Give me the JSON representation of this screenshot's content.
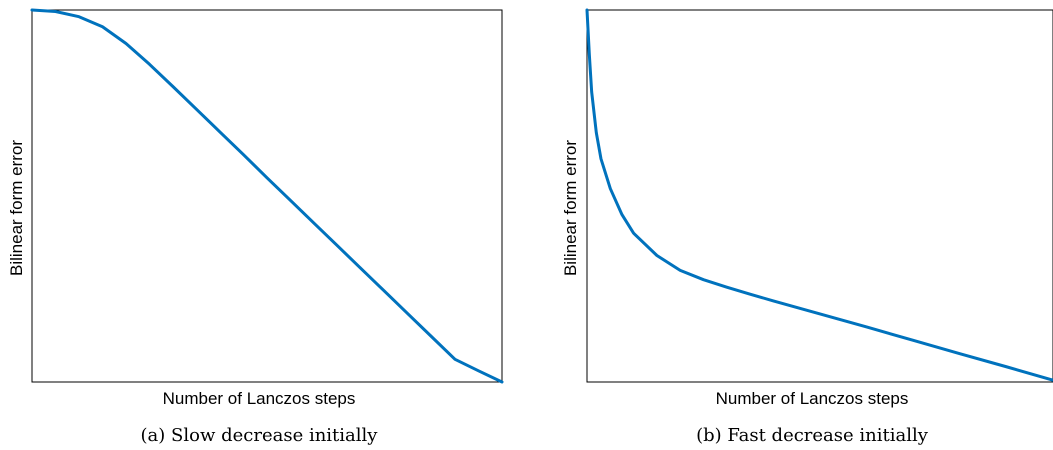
{
  "chart_data": [
    {
      "type": "line",
      "caption": "(a) Slow decrease initially",
      "xlabel": "Number of Lanczos steps",
      "ylabel": "Bilinear form error",
      "color": "#0072BD",
      "x": [
        0,
        0.05,
        0.1,
        0.15,
        0.2,
        0.25,
        0.3,
        0.35,
        0.4,
        0.45,
        0.5,
        0.55,
        0.6,
        0.65,
        0.7,
        0.75,
        0.8,
        0.85,
        0.9,
        0.95,
        1.0
      ],
      "y": [
        1.0,
        0.996,
        0.982,
        0.955,
        0.91,
        0.854,
        0.794,
        0.733,
        0.672,
        0.611,
        0.549,
        0.488,
        0.427,
        0.366,
        0.305,
        0.244,
        0.183,
        0.122,
        0.061,
        0.03,
        0.0
      ],
      "xlim": [
        0,
        1
      ],
      "ylim": [
        0,
        1
      ]
    },
    {
      "type": "line",
      "caption": "(b) Fast decrease initially",
      "xlabel": "Number of Lanczos steps",
      "ylabel": "Bilinear form error",
      "color": "#0072BD",
      "x": [
        0,
        0.005,
        0.01,
        0.02,
        0.03,
        0.05,
        0.075,
        0.1,
        0.15,
        0.2,
        0.25,
        0.3,
        0.35,
        0.4,
        0.5,
        0.6,
        0.7,
        0.8,
        0.9,
        1.0
      ],
      "y": [
        1.0,
        0.88,
        0.78,
        0.67,
        0.6,
        0.52,
        0.45,
        0.4,
        0.34,
        0.3,
        0.275,
        0.255,
        0.236,
        0.218,
        0.183,
        0.148,
        0.112,
        0.076,
        0.041,
        0.005
      ],
      "xlim": [
        0,
        1
      ],
      "ylim": [
        0,
        1
      ]
    }
  ]
}
